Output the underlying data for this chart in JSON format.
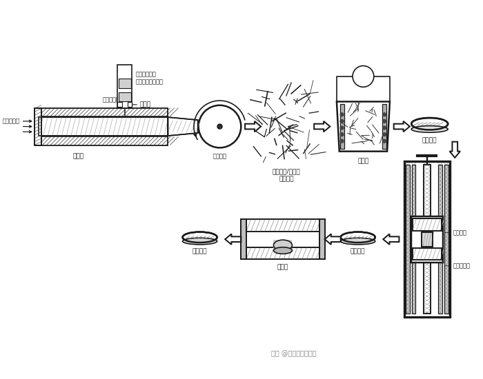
{
  "bg_color": "#ffffff",
  "line_color": "#1a1a1a",
  "text_color": "#1a1a1a",
  "labels": {
    "injection": "注液和气气",
    "furnace": "高温炉",
    "plasma_device": "等离子体增强\n化学气相沉积装置",
    "graphene_label": "石墨烯",
    "network_label": "取向碳纳米管网络",
    "collector_label": "收集装置",
    "composite_network": "碳纳米管/石墨烯\n复合网络",
    "electro_label": "电沉积",
    "press_label": "压制成型",
    "composite2": "复合材料",
    "heat_label": "热处理",
    "composite3": "复合材料",
    "composite_body": "复合胴体",
    "vacuum_furnace": "真空热压炉",
    "watermark": "头条 @秋仁木的历史厅"
  }
}
